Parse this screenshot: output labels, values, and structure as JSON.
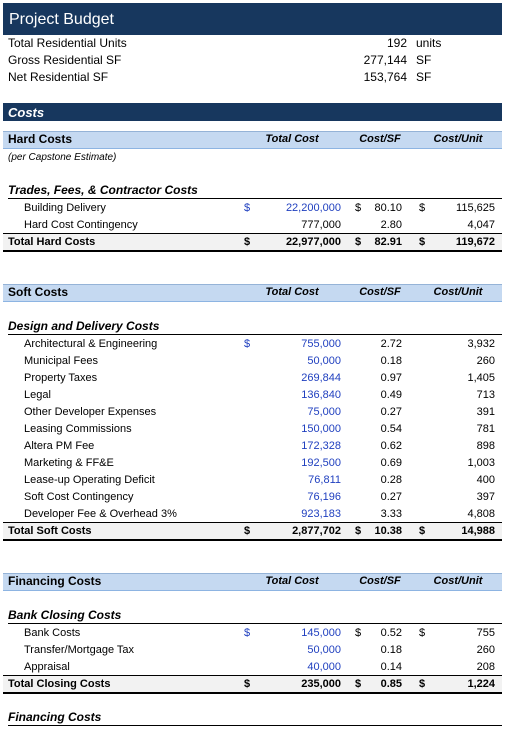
{
  "title": "Project Budget",
  "summary": [
    {
      "label": "Total Residential Units",
      "value": "192",
      "unit": "units"
    },
    {
      "label": "Gross Residential SF",
      "value": "277,144",
      "unit": "SF"
    },
    {
      "label": "Net Residential SF",
      "value": "153,764",
      "unit": "SF"
    }
  ],
  "section": "Costs",
  "groups": [
    {
      "header": "Hard Costs",
      "columns": [
        "Total Cost",
        "Cost/SF",
        "Cost/Unit"
      ],
      "note": "(per Capstone Estimate)",
      "subheading": "Trades, Fees, & Contractor Costs",
      "rows": [
        {
          "label": "Building Delivery",
          "cells": [
            "22,200,000",
            "80.10",
            "115,625"
          ],
          "signs": [
            "$",
            "$",
            "$"
          ],
          "color": "#1f3fbf"
        },
        {
          "label": "Hard Cost Contingency",
          "cells": [
            "777,000",
            "2.80",
            "4,047"
          ]
        }
      ],
      "total": {
        "label": "Total Hard Costs",
        "cells": [
          "22,977,000",
          "82.91",
          "119,672"
        ],
        "signs": [
          "$",
          "$",
          "$"
        ]
      }
    },
    {
      "header": "Soft Costs",
      "columns": [
        "Total Cost",
        "Cost/SF",
        "Cost/Unit"
      ],
      "subheading": "Design and Delivery Costs",
      "rows": [
        {
          "label": "Architectural & Engineering",
          "cells": [
            "755,000",
            "2.72",
            "3,932"
          ],
          "signs": [
            "$",
            null,
            null
          ],
          "color": "#1f3fbf"
        },
        {
          "label": "Municipal Fees",
          "cells": [
            "50,000",
            "0.18",
            "260"
          ],
          "color": "#1f3fbf"
        },
        {
          "label": "Property Taxes",
          "cells": [
            "269,844",
            "0.97",
            "1,405"
          ],
          "color": "#1f3fbf"
        },
        {
          "label": "Legal",
          "cells": [
            "136,840",
            "0.49",
            "713"
          ],
          "color": "#1f3fbf"
        },
        {
          "label": "Other Developer Expenses",
          "cells": [
            "75,000",
            "0.27",
            "391"
          ],
          "color": "#1f3fbf"
        },
        {
          "label": "Leasing Commissions",
          "cells": [
            "150,000",
            "0.54",
            "781"
          ],
          "color": "#1f3fbf"
        },
        {
          "label": "Altera PM  Fee",
          "cells": [
            "172,328",
            "0.62",
            "898"
          ],
          "color": "#1f3fbf"
        },
        {
          "label": "Marketing & FF&E",
          "cells": [
            "192,500",
            "0.69",
            "1,003"
          ],
          "color": "#1f3fbf"
        },
        {
          "label": "Lease-up Operating Deficit",
          "cells": [
            "76,811",
            "0.28",
            "400"
          ],
          "color": "#1f3fbf"
        },
        {
          "label": "Soft Cost Contingency",
          "cells": [
            "76,196",
            "0.27",
            "397"
          ],
          "color": "#1f3fbf"
        },
        {
          "label": "Developer Fee & Overhead 3%",
          "cells": [
            "923,183",
            "3.33",
            "4,808"
          ],
          "color": "#1f3fbf"
        }
      ],
      "total": {
        "label": "Total Soft Costs",
        "cells": [
          "2,877,702",
          "10.38",
          "14,988"
        ],
        "signs": [
          "$",
          "$",
          "$"
        ]
      }
    },
    {
      "header": "Financing Costs",
      "columns": [
        "Total Cost",
        "Cost/SF",
        "Cost/Unit"
      ],
      "subheading": "Bank Closing Costs",
      "rows": [
        {
          "label": "Bank Costs",
          "cells": [
            "145,000",
            "0.52",
            "755"
          ],
          "signs": [
            "$",
            "$",
            "$"
          ],
          "color": "#1f3fbf"
        },
        {
          "label": "Transfer/Mortgage Tax",
          "cells": [
            "50,000",
            "0.18",
            "260"
          ],
          "color": "#1f3fbf"
        },
        {
          "label": "Appraisal",
          "cells": [
            "40,000",
            "0.14",
            "208"
          ],
          "color": "#1f3fbf"
        }
      ],
      "total": {
        "label": "Total Closing Costs",
        "cells": [
          "235,000",
          "0.85",
          "1,224"
        ],
        "signs": [
          "$",
          "$",
          "$"
        ]
      }
    }
  ],
  "trailing_subheading": "Financing Costs"
}
